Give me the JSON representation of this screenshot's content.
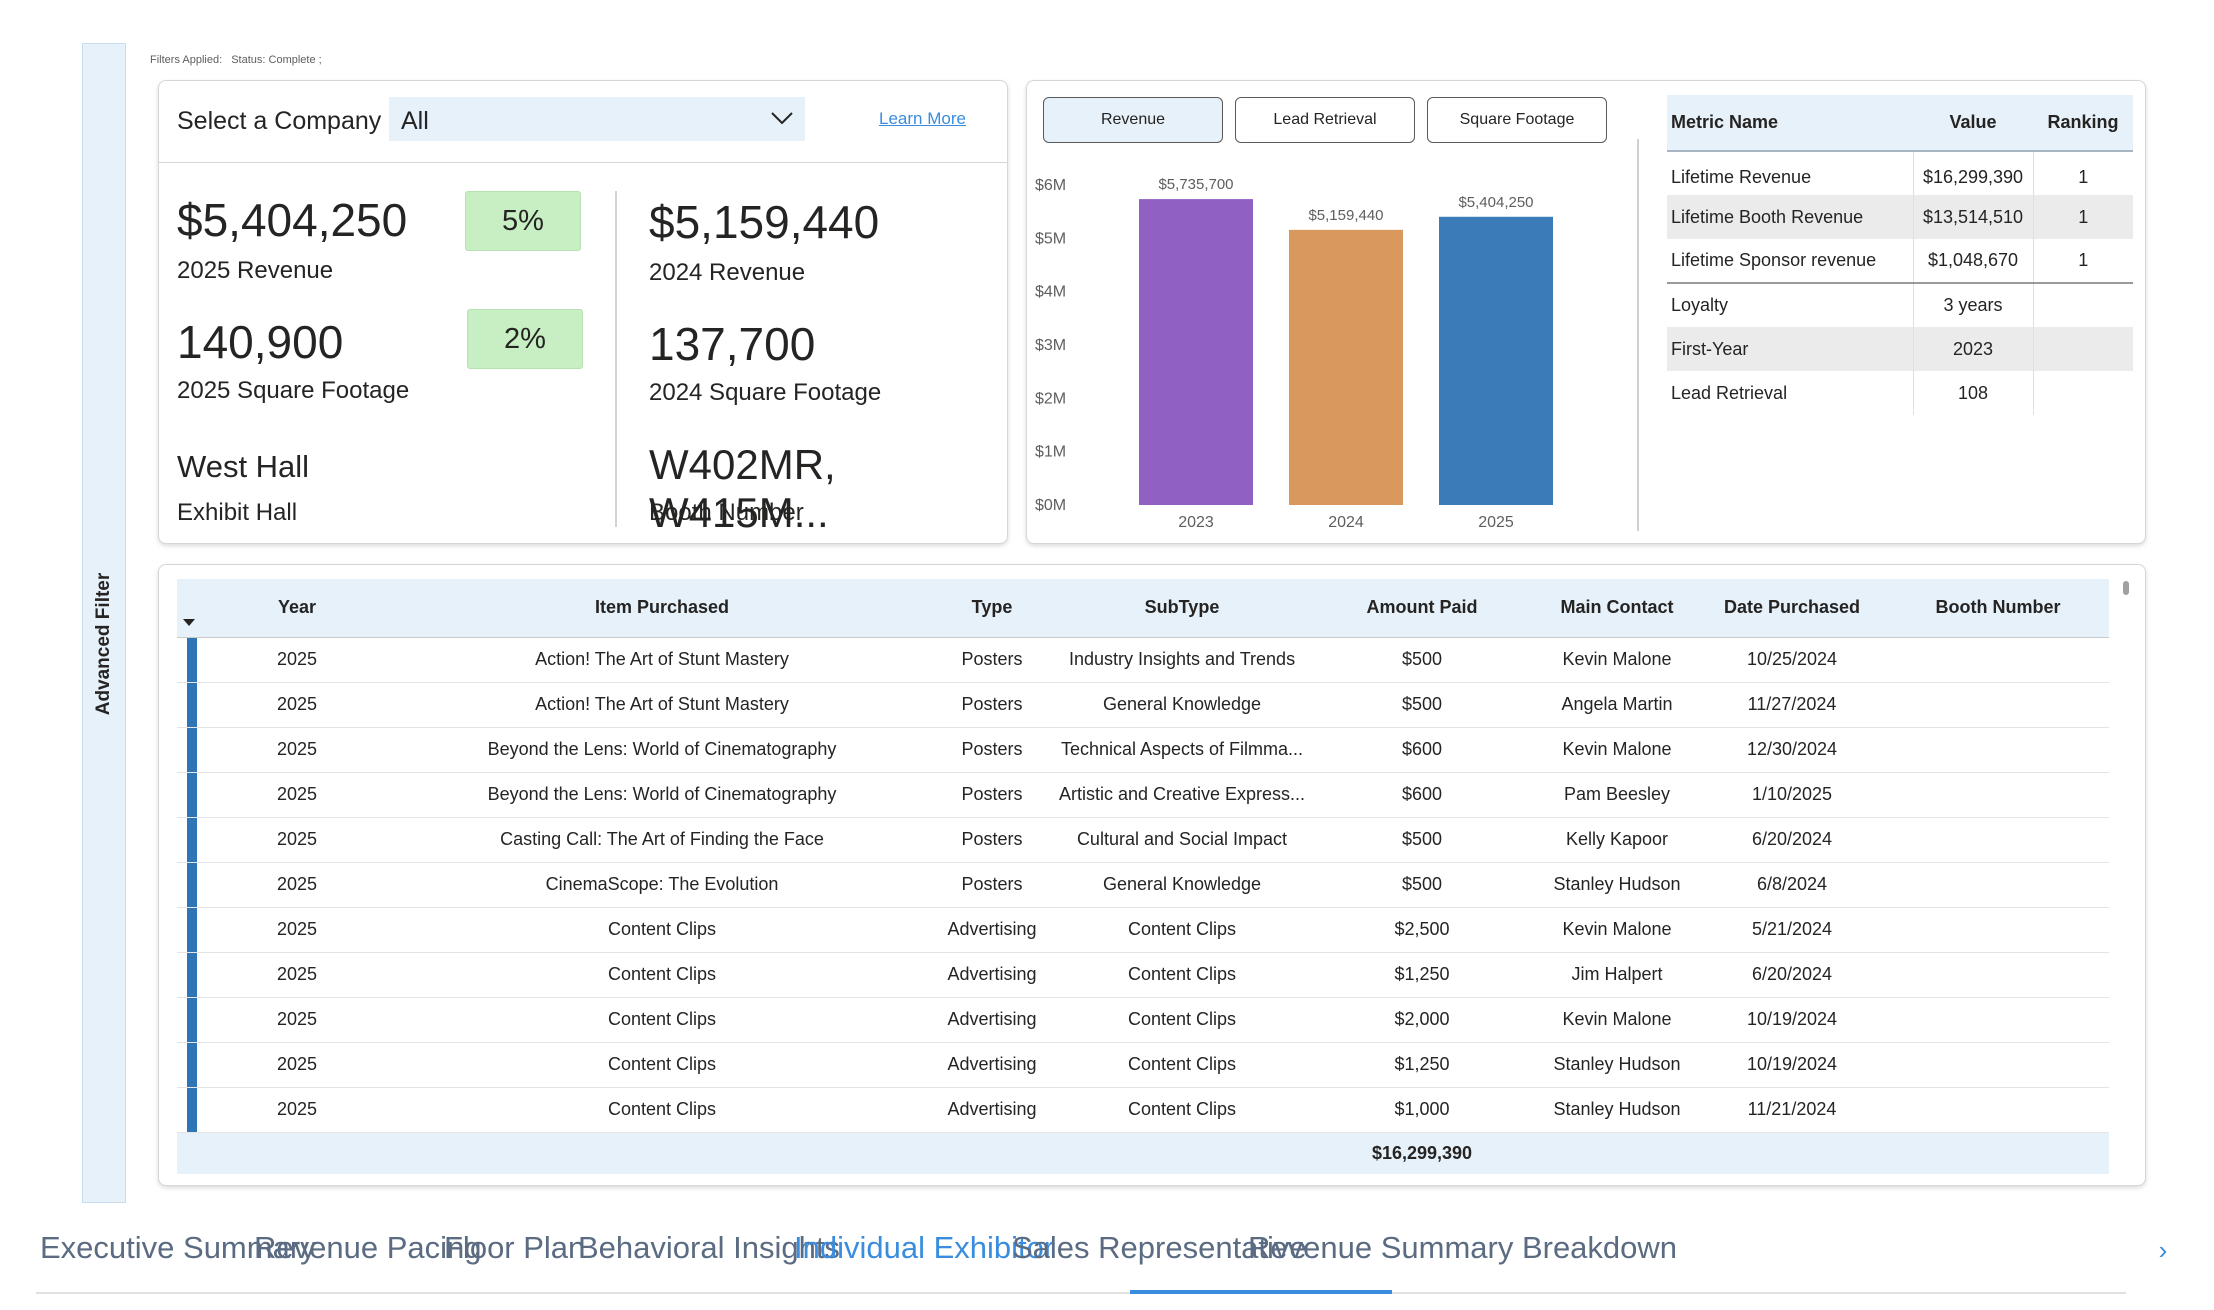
{
  "advanced_filter": "Advanced Filter",
  "filters_applied": {
    "label": "Filters Applied:",
    "value": "Status: Complete ;"
  },
  "company": {
    "label": "Select a Company",
    "selected": "All",
    "learn_more": "Learn More"
  },
  "kpis": {
    "rev_2025": "$5,404,250",
    "rev_2025_label": "2025 Revenue",
    "rev_growth": "5%",
    "sqft_2025": "140,900",
    "sqft_2025_label": "2025 Square Footage",
    "sqft_growth": "2%",
    "hall": "West Hall",
    "hall_label": "Exhibit Hall",
    "rev_2024": "$5,159,440",
    "rev_2024_label": "2024 Revenue",
    "sqft_2024": "137,700",
    "sqft_2024_label": "2024 Square Footage",
    "booth": "W402MR, W415M...",
    "booth_label": "Booth Number"
  },
  "chart_buttons": [
    "Revenue",
    "Lead Retrieval",
    "Square Footage"
  ],
  "chart_data": {
    "type": "bar",
    "categories": [
      "2023",
      "2024",
      "2025"
    ],
    "values": [
      5735700,
      5159440,
      5404250
    ],
    "data_labels": [
      "$5,735,700",
      "$5,159,440",
      "$5,404,250"
    ],
    "colors": [
      "#9060c2",
      "#d9985c",
      "#3a7bb8"
    ],
    "y_ticks": [
      "$0M",
      "$1M",
      "$2M",
      "$3M",
      "$4M",
      "$5M",
      "$6M"
    ],
    "ylim": [
      0,
      6000000
    ],
    "title": "",
    "xlabel": "",
    "ylabel": ""
  },
  "metrics": {
    "headers": [
      "Metric Name",
      "Value",
      "Ranking"
    ],
    "rows": [
      {
        "name": "Lifetime Revenue",
        "value": "$16,299,390",
        "rank": "1"
      },
      {
        "name": "Lifetime Booth Revenue",
        "value": "$13,514,510",
        "rank": "1"
      },
      {
        "name": "Lifetime Sponsor revenue",
        "value": "$1,048,670",
        "rank": "1"
      },
      {
        "name": "Loyalty",
        "value": "3 years",
        "rank": ""
      },
      {
        "name": "First-Year",
        "value": "2023",
        "rank": ""
      },
      {
        "name": "Lead Retrieval",
        "value": "108",
        "rank": ""
      }
    ]
  },
  "purchases": {
    "headers": [
      "Year",
      "Item Purchased",
      "Type",
      "SubType",
      "Amount Paid",
      "Main Contact",
      "Date Purchased",
      "Booth Number"
    ],
    "rows": [
      [
        "2025",
        "Action! The Art of Stunt Mastery",
        "Posters",
        "Industry Insights and Trends",
        "$500",
        "Kevin Malone",
        "10/25/2024",
        ""
      ],
      [
        "2025",
        "Action! The Art of Stunt Mastery",
        "Posters",
        "General Knowledge",
        "$500",
        "Angela Martin",
        "11/27/2024",
        ""
      ],
      [
        "2025",
        "Beyond the Lens: World of Cinematography",
        "Posters",
        "Technical Aspects of Filmma...",
        "$600",
        "Kevin Malone",
        "12/30/2024",
        ""
      ],
      [
        "2025",
        "Beyond the Lens: World of Cinematography",
        "Posters",
        "Artistic and Creative Express...",
        "$600",
        "Pam Beesley",
        "1/10/2025",
        ""
      ],
      [
        "2025",
        "Casting Call: The Art of Finding the Face",
        "Posters",
        "Cultural and Social Impact",
        "$500",
        "Kelly Kapoor",
        "6/20/2024",
        ""
      ],
      [
        "2025",
        "CinemaScope: The Evolution",
        "Posters",
        "General Knowledge",
        "$500",
        "Stanley Hudson",
        "6/8/2024",
        ""
      ],
      [
        "2025",
        "Content Clips",
        "Advertising",
        "Content Clips",
        "$2,500",
        "Kevin Malone",
        "5/21/2024",
        ""
      ],
      [
        "2025",
        "Content Clips",
        "Advertising",
        "Content Clips",
        "$1,250",
        "Jim Halpert",
        "6/20/2024",
        ""
      ],
      [
        "2025",
        "Content Clips",
        "Advertising",
        "Content Clips",
        "$2,000",
        "Kevin Malone",
        "10/19/2024",
        ""
      ],
      [
        "2025",
        "Content Clips",
        "Advertising",
        "Content Clips",
        "$1,250",
        "Stanley Hudson",
        "10/19/2024",
        ""
      ],
      [
        "2025",
        "Content Clips",
        "Advertising",
        "Content Clips",
        "$1,000",
        "Stanley Hudson",
        "11/21/2024",
        ""
      ]
    ],
    "total": "$16,299,390"
  },
  "tabs": [
    "Executive Summary",
    "Revenue Pacing",
    "Floor Plan",
    "Behavioral Insights",
    "Individual Exhibitor",
    "Sales Representative",
    "Revenue Summary Breakdown"
  ],
  "active_tab_index": 4
}
